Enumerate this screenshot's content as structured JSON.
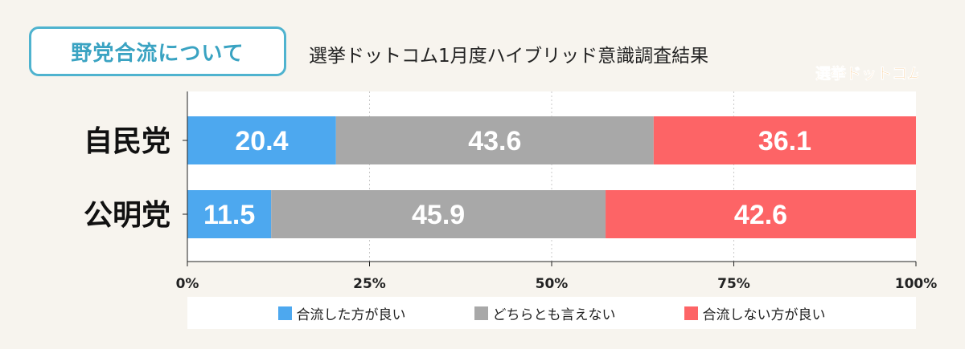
{
  "header": {
    "badge": "野党合流について",
    "subtitle": "選挙ドットコム1月度ハイブリッド意識調査結果",
    "logo_text": "選挙ドットコム"
  },
  "colors": {
    "badge_border": "#4fb3cf",
    "series_1": "#4da8ef",
    "series_2": "#a8a8a8",
    "series_3": "#fd6466",
    "background": "#f7f4ee"
  },
  "chart_data": {
    "type": "bar",
    "orientation": "horizontal",
    "stacked": true,
    "categories": [
      "自民党",
      "公明党"
    ],
    "series": [
      {
        "name": "合流した方が良い",
        "values": [
          20.4,
          11.5
        ]
      },
      {
        "name": "どちらとも言えない",
        "values": [
          43.6,
          45.9
        ]
      },
      {
        "name": "合流しない方が良い",
        "values": [
          36.1,
          42.6
        ]
      }
    ],
    "xlim": [
      0,
      100
    ],
    "xticks": [
      "0%",
      "25%",
      "50%",
      "75%",
      "100%"
    ],
    "grid": true,
    "legend_position": "bottom"
  }
}
